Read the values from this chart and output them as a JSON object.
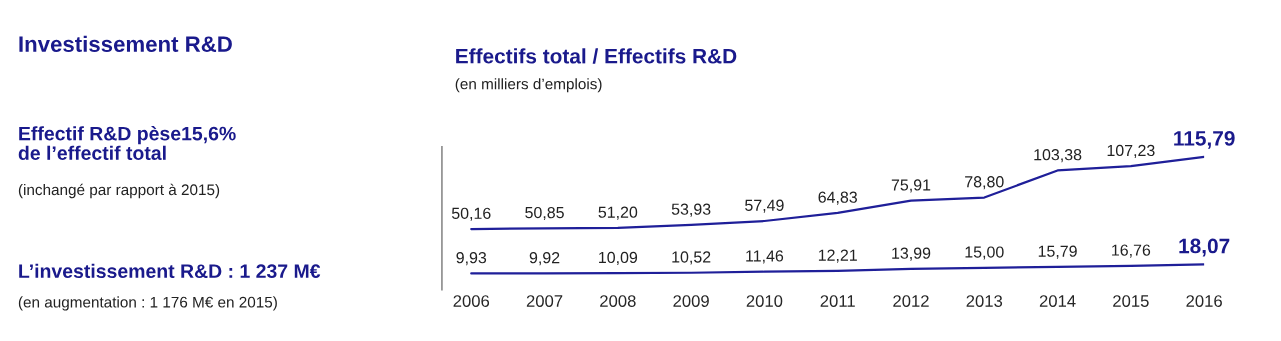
{
  "chart_data": {
    "type": "line",
    "title": "Effectifs total / Effectifs R&D",
    "subtitle": "(en milliers d’emplois)",
    "x": [
      2006,
      2007,
      2008,
      2009,
      2010,
      2011,
      2012,
      2013,
      2014,
      2015,
      2016
    ],
    "xlim": [
      2005.6,
      2016
    ],
    "xticks": [
      2006,
      2007,
      2008,
      2009,
      2010,
      2011,
      2012,
      2013,
      2014,
      2015,
      2016
    ],
    "ylim": [
      -5,
      125
    ],
    "tick_labels": "x",
    "grid": false,
    "marker": "none",
    "line_style": "solid",
    "series": [
      {
        "color": "#1f1f99",
        "values": [
          50.16,
          50.85,
          51.2,
          53.93,
          57.49,
          64.83,
          75.91,
          78.8,
          103.38,
          107.23,
          115.79
        ],
        "value_labels": [
          "50,16",
          "50,85",
          "51,20",
          "53,93",
          "57,49",
          "64,83",
          "75,91",
          "78,80",
          "103,38",
          "107,23",
          "115,79"
        ]
      },
      {
        "color": "#1f1f99",
        "values": [
          9.93,
          9.92,
          10.09,
          10.52,
          11.46,
          12.21,
          13.99,
          15.0,
          15.79,
          16.76,
          18.07
        ],
        "value_labels": [
          "9,93",
          "9,92",
          "10,09",
          "10,52",
          "11,46",
          "12,21",
          "13,99",
          "15,00",
          "15,79",
          "16,76",
          "18,07"
        ]
      }
    ],
    "annotations": [
      "Investissement R&D",
      "Effectif R&D pèse15,6%\nde l’effectif total",
      "(inchangé par rapport à 2015)",
      "L’investissement R&D : 1 237 M€",
      "(en augmentation : 1 176 M€ en 2015)"
    ]
  }
}
